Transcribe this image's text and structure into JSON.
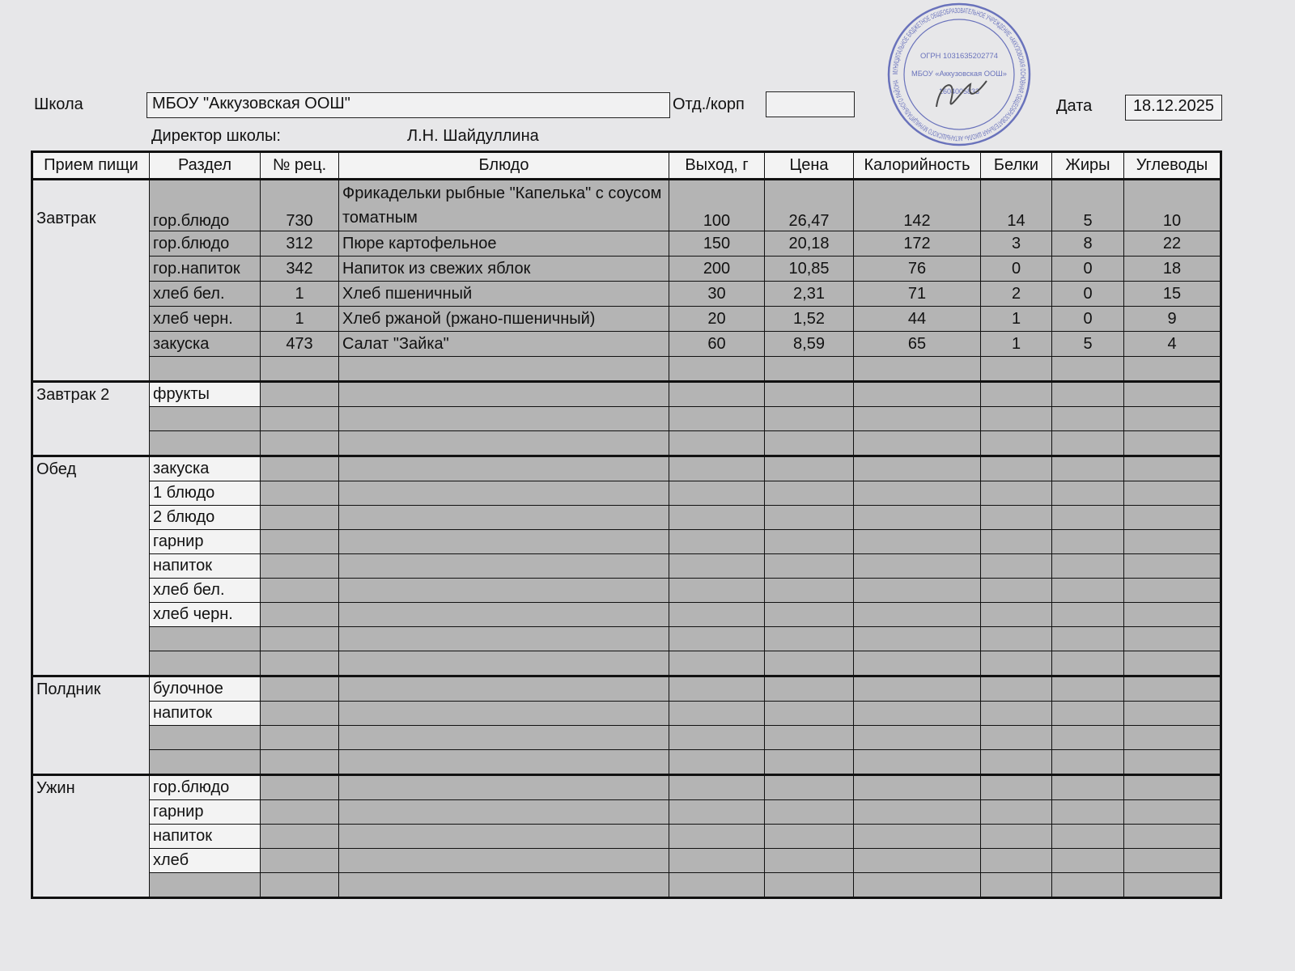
{
  "header": {
    "school_label": "Школа",
    "school_value": "МБОУ \"Аккузовская ООШ\"",
    "dept_label": "Отд./корп",
    "dept_value": "",
    "date_label": "Дата",
    "date_value": "18.12.2025",
    "director_label": "Директор школы:",
    "director_name": "Л.Н. Шайдуллина"
  },
  "stamp": {
    "text_outer": "МУНИЦИПАЛЬНОЕ БЮДЖЕТНОЕ ОБЩЕОБРАЗОВАТЕЛЬНОЕ УЧРЕЖДЕНИЕ «АККУЗОВСКАЯ ОСНОВНАЯ ОБЩЕОБРАЗОВАТЕЛЬНАЯ ШКОЛА» АКТАНЫШСКОГО МУНИЦИПАЛЬНОГО РАЙОНА",
    "ogrn": "ОГРН 1031635202774",
    "inn": "1604005833",
    "center": "МБОУ «Аккузовская ООШ»",
    "color": "#4a55b0"
  },
  "columns": [
    "Прием пищи",
    "Раздел",
    "№ рец.",
    "Блюдо",
    "Выход, г",
    "Цена",
    "Калорийность",
    "Белки",
    "Жиры",
    "Углеводы"
  ],
  "meals": [
    {
      "name": "Завтрак",
      "white_sections": false,
      "rows": [
        {
          "section": "гор.блюдо",
          "recipe": "730",
          "dish": "Фрикадельки рыбные \"Капелька\" с соусом томатным",
          "yield": "100",
          "price": "26,47",
          "kcal": "142",
          "protein": "14",
          "fat": "5",
          "carbs": "10"
        },
        {
          "section": "гор.блюдо",
          "recipe": "312",
          "dish": "Пюре картофельное",
          "yield": "150",
          "price": "20,18",
          "kcal": "172",
          "protein": "3",
          "fat": "8",
          "carbs": "22"
        },
        {
          "section": "гор.напиток",
          "recipe": "342",
          "dish": "Напиток из свежих яблок",
          "yield": "200",
          "price": "10,85",
          "kcal": "76",
          "protein": "0",
          "fat": "0",
          "carbs": "18"
        },
        {
          "section": "хлеб бел.",
          "recipe": "1",
          "dish": "Хлеб пшеничный",
          "yield": "30",
          "price": "2,31",
          "kcal": "71",
          "protein": "2",
          "fat": "0",
          "carbs": "15"
        },
        {
          "section": "хлеб черн.",
          "recipe": "1",
          "dish": "Хлеб ржаной (ржано-пшеничный)",
          "yield": "20",
          "price": "1,52",
          "kcal": "44",
          "protein": "1",
          "fat": "0",
          "carbs": "9"
        },
        {
          "section": "закуска",
          "recipe": "473",
          "dish": "Салат \"Зайка\"",
          "yield": "60",
          "price": "8,59",
          "kcal": "65",
          "protein": "1",
          "fat": "5",
          "carbs": "4"
        },
        {}
      ]
    },
    {
      "name": "Завтрак 2",
      "white_sections": true,
      "rows": [
        {
          "section": "фрукты"
        },
        {},
        {}
      ]
    },
    {
      "name": "Обед",
      "white_sections": true,
      "rows": [
        {
          "section": "закуска"
        },
        {
          "section": "1 блюдо"
        },
        {
          "section": "2 блюдо"
        },
        {
          "section": "гарнир"
        },
        {
          "section": "напиток"
        },
        {
          "section": "хлеб бел."
        },
        {
          "section": "хлеб черн."
        },
        {},
        {}
      ]
    },
    {
      "name": "Полдник",
      "white_sections": true,
      "rows": [
        {
          "section": "булочное"
        },
        {
          "section": "напиток"
        },
        {},
        {}
      ]
    },
    {
      "name": "Ужин",
      "white_sections": true,
      "rows": [
        {
          "section": "гор.блюдо"
        },
        {
          "section": "гарнир"
        },
        {
          "section": "напиток"
        },
        {
          "section": "хлеб"
        },
        {}
      ]
    }
  ]
}
